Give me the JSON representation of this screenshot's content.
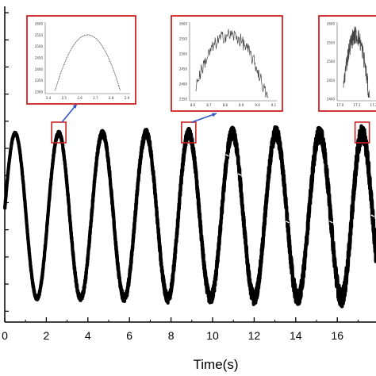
{
  "chart_data": {
    "type": "line",
    "title": "",
    "xlabel": "Time(s)",
    "ylabel": "",
    "xlim": [
      0,
      18
    ],
    "x_ticks": [
      0,
      2,
      4,
      6,
      8,
      10,
      12,
      14,
      16
    ],
    "x_tick_labels": [
      "0",
      "2",
      "4",
      "6",
      "8",
      "10",
      "12",
      "14",
      "16"
    ],
    "y_tick_count": 12,
    "signal": {
      "shape": "sine",
      "period_s": 2.09,
      "peak_times_s": [
        0.5,
        2.6,
        4.7,
        6.8,
        8.85,
        10.95,
        13.05,
        15.15,
        17.2
      ],
      "trough_times_s": [
        1.55,
        3.65,
        5.75,
        7.85,
        9.9,
        12.0,
        14.1,
        16.2
      ],
      "noise_grows_with_time": true,
      "color": "#000000"
    },
    "highlights": [
      {
        "name": "box-1",
        "around_x_s": 2.6,
        "color": "#cc2222"
      },
      {
        "name": "box-2",
        "around_x_s": 8.85,
        "color": "#cc2222"
      },
      {
        "name": "box-3",
        "around_x_s": 17.2,
        "color": "#cc2222"
      }
    ],
    "insets": [
      {
        "name": "inset-1",
        "x_tick_labels": [
          "2.4",
          "2.5",
          "2.6",
          "2.7",
          "2.8",
          "2.9"
        ],
        "y_tick_labels": [
          "2600",
          "2550",
          "2500",
          "2450",
          "2400",
          "2350",
          "2300"
        ],
        "shape": "smooth-peak"
      },
      {
        "name": "inset-2",
        "x_tick_labels": [
          "8.6",
          "8.7",
          "8.8",
          "8.9",
          "9.0",
          "9.1"
        ],
        "y_tick_labels": [
          "2600",
          "2550",
          "2500",
          "2450",
          "2400",
          "2350"
        ],
        "shape": "noisy-peak"
      },
      {
        "name": "inset-3",
        "x_tick_labels": [
          "17.0",
          "17.1",
          "17.2"
        ],
        "y_tick_labels": [
          "2600",
          "2550",
          "2500",
          "2450",
          "2400"
        ],
        "shape": "very-noisy-peak"
      }
    ],
    "frame_color": "#cc2222",
    "arrow_color": "#3355cc",
    "grid": false,
    "legend": "none"
  }
}
